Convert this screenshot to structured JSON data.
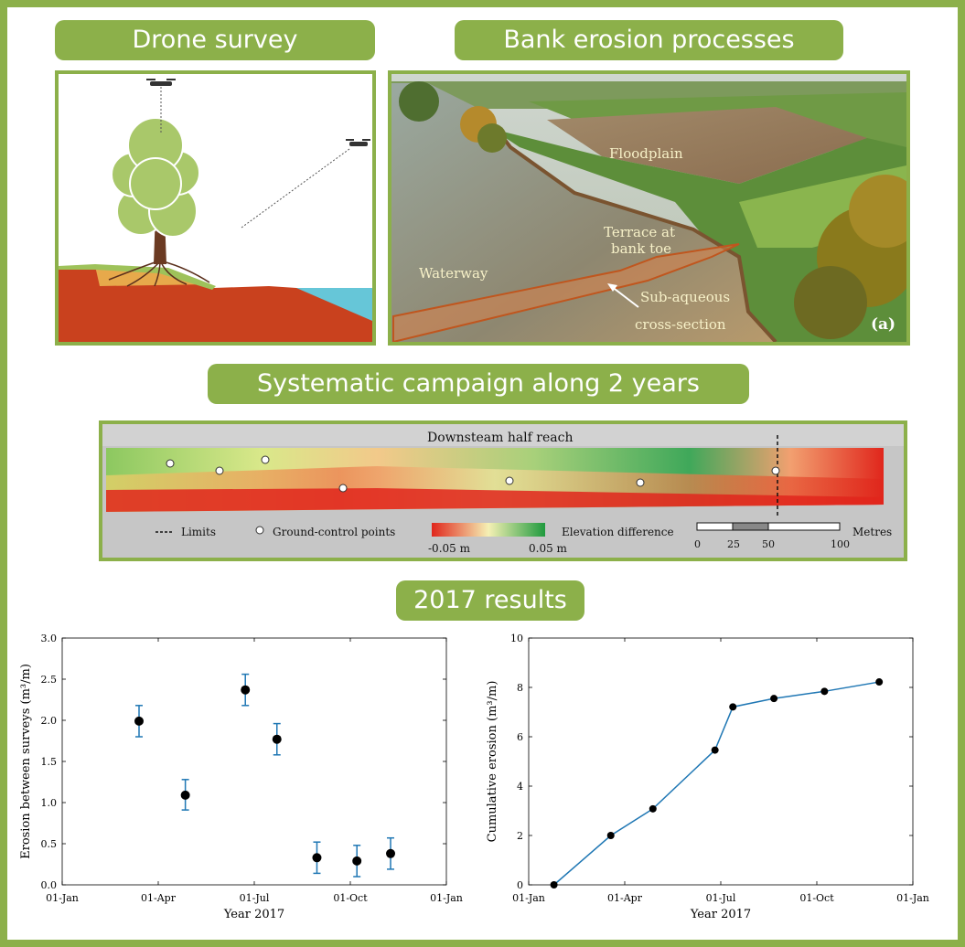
{
  "headers": {
    "drone_survey": "Drone survey",
    "bank_erosion": "Bank erosion processes",
    "campaign": "Systematic campaign along 2 years",
    "results": "2017 results"
  },
  "photo": {
    "floodplain": "Floodplain",
    "terrace_line1": "Terrace at",
    "terrace_line2": "bank toe",
    "waterway": "Waterway",
    "subaqueous_line1": "Sub-aqueous",
    "subaqueous_line2": "cross-section",
    "panel_tag": "(a)"
  },
  "map": {
    "title": "Downsteam  half reach",
    "legend_limits": "Limits",
    "legend_gcp": "Ground-control points",
    "legend_elevation": "Elevation difference",
    "colorbar_min": "-0.05 m",
    "colorbar_max": "0.05 m",
    "scale_unit": "Metres",
    "scale_ticks": [
      "0",
      "25",
      "50",
      "100"
    ],
    "colors": {
      "low": "#e0261c",
      "mid": "#f5f0b4",
      "high": "#1f9a3e"
    }
  },
  "chart_data": [
    {
      "type": "scatter",
      "xlabel": "Year 2017",
      "ylabel": "Erosion between surveys (m³/m)",
      "xticks": [
        "01-Jan",
        "01-Apr",
        "01-Jul",
        "01-Oct",
        "01-Jan"
      ],
      "xlim": [
        "2017-01-01",
        "2018-01-01"
      ],
      "ylim": [
        0,
        3.0
      ],
      "yticks": [
        "0.0",
        "0.5",
        "1.0",
        "1.5",
        "2.0",
        "2.5",
        "3.0"
      ],
      "points": [
        {
          "x": "2017-03-15",
          "y": 1.99,
          "err_low": 1.8,
          "err_high": 2.18
        },
        {
          "x": "2017-04-28",
          "y": 1.09,
          "err_low": 0.91,
          "err_high": 1.28
        },
        {
          "x": "2017-06-24",
          "y": 2.37,
          "err_low": 2.18,
          "err_high": 2.56
        },
        {
          "x": "2017-07-24",
          "y": 1.77,
          "err_low": 1.58,
          "err_high": 1.96
        },
        {
          "x": "2017-08-31",
          "y": 0.33,
          "err_low": 0.14,
          "err_high": 0.52
        },
        {
          "x": "2017-10-08",
          "y": 0.29,
          "err_low": 0.1,
          "err_high": 0.48
        },
        {
          "x": "2017-11-09",
          "y": 0.38,
          "err_low": 0.19,
          "err_high": 0.57
        }
      ],
      "colors": {
        "marker": "#000000",
        "errorbar": "#1f77b4"
      }
    },
    {
      "type": "line",
      "xlabel": "Year 2017",
      "ylabel": "Cumulative erosion (m³/m)",
      "xticks": [
        "01-Jan",
        "01-Apr",
        "01-Jul",
        "01-Oct",
        "01-Jan"
      ],
      "xlim": [
        "2017-01-01",
        "2018-01-01"
      ],
      "ylim": [
        0,
        10
      ],
      "yticks": [
        "0",
        "2",
        "4",
        "6",
        "8",
        "10"
      ],
      "points": [
        {
          "x": "2017-01-25",
          "y": 0
        },
        {
          "x": "2017-03-20",
          "y": 2.0
        },
        {
          "x": "2017-04-29",
          "y": 3.08
        },
        {
          "x": "2017-06-27",
          "y": 5.46
        },
        {
          "x": "2017-07-14",
          "y": 7.21
        },
        {
          "x": "2017-08-22",
          "y": 7.55
        },
        {
          "x": "2017-10-09",
          "y": 7.84
        },
        {
          "x": "2017-11-30",
          "y": 8.22
        }
      ],
      "colors": {
        "line": "#1f77b4",
        "marker": "#000000"
      }
    }
  ]
}
